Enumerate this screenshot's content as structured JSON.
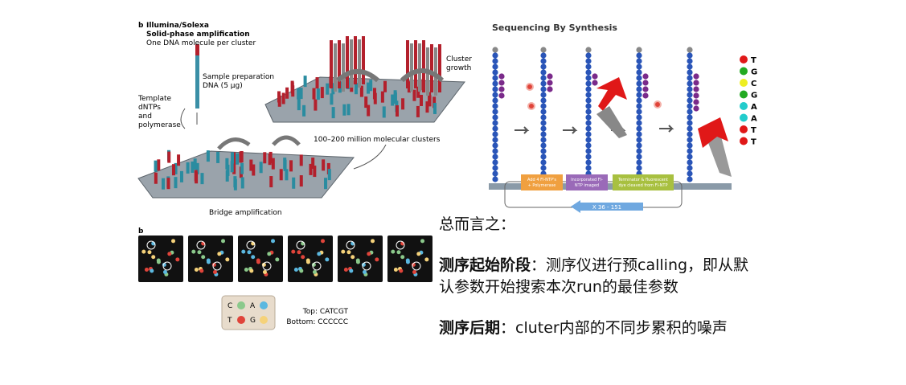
{
  "left_figure": {
    "panel_label": "b",
    "title": "Illumina/Solexa",
    "subtitle": "Solid-phase amplification",
    "note": "One DNA molecule per cluster",
    "sample_label": [
      "Sample preparation",
      "DNA (5 μg)"
    ],
    "reagent_label": [
      "Template",
      "dNTPs",
      "and",
      "polymerase"
    ],
    "bridge_label": "Bridge amplification",
    "clusters_label": "100–200 million molecular clusters",
    "growth_label": [
      "Cluster",
      "growth"
    ]
  },
  "image_panel": {
    "panel_label": "b",
    "bases": [
      "C",
      "A",
      "T",
      "G"
    ],
    "top": "Top: CATCGT",
    "bottom": "Bottom: CCCCCC"
  },
  "right_figure": {
    "title": "Sequencing By Synthesis",
    "steps": [
      [
        "Add 4 Fl-NTP's",
        "+ Polymerase"
      ],
      [
        "Incorporated Fl-",
        "NTP imaged"
      ],
      [
        "Terminator & fluorescent",
        "dye cleaved from Fl-NTP"
      ]
    ],
    "cycles": "X 36 - 151",
    "read": [
      "T",
      "G",
      "C",
      "G",
      "A",
      "A",
      "T",
      "T"
    ]
  },
  "summary": {
    "heading": "总而言之：",
    "points": [
      {
        "term": "测序起始阶段",
        "text": "：测序仪进行预calling，即从默认参数开始搜索本次run的最佳参数"
      },
      {
        "term": "测序后期",
        "text": "：cluter内部的不同步累积的噪声"
      }
    ]
  }
}
